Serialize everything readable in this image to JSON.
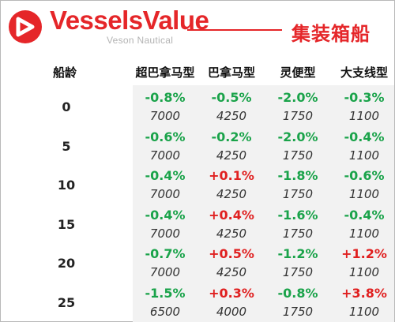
{
  "header": {
    "brand": "VesselsValue",
    "brand_sub": "Veson Nautical",
    "title": "集装箱船",
    "accent_color": "#e52629"
  },
  "table": {
    "age_header": "船龄",
    "columns": [
      "超巴拿马型",
      "巴拿马型",
      "灵便型",
      "大支线型"
    ],
    "rows": [
      {
        "age": "0",
        "pct": [
          "-0.8%",
          "-0.5%",
          "-2.0%",
          "-0.3%"
        ],
        "val": [
          "7000",
          "4250",
          "1750",
          "1100"
        ]
      },
      {
        "age": "5",
        "pct": [
          "-0.6%",
          "-0.2%",
          "-2.0%",
          "-0.4%"
        ],
        "val": [
          "7000",
          "4250",
          "1750",
          "1100"
        ]
      },
      {
        "age": "10",
        "pct": [
          "-0.4%",
          "+0.1%",
          "-1.8%",
          "-0.6%"
        ],
        "val": [
          "7000",
          "4250",
          "1750",
          "1100"
        ]
      },
      {
        "age": "15",
        "pct": [
          "-0.4%",
          "+0.4%",
          "-1.6%",
          "-0.4%"
        ],
        "val": [
          "7000",
          "4250",
          "1750",
          "1100"
        ]
      },
      {
        "age": "20",
        "pct": [
          "-0.7%",
          "+0.5%",
          "-1.2%",
          "+1.2%"
        ],
        "val": [
          "7000",
          "4250",
          "1750",
          "1100"
        ]
      },
      {
        "age": "25",
        "pct": [
          "-1.5%",
          "+0.3%",
          "-0.8%",
          "+3.8%"
        ],
        "val": [
          "6500",
          "4000",
          "1750",
          "1100"
        ]
      }
    ],
    "negative_color": "#1aa34a",
    "positive_color": "#e02020"
  }
}
